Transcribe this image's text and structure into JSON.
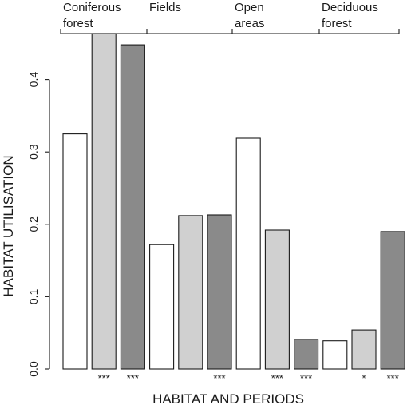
{
  "chart_data": {
    "type": "bar",
    "title": "",
    "xlabel": "HABITAT AND PERIODS",
    "ylabel": "HABITAT UTILISATION",
    "ylim": [
      0,
      0.47
    ],
    "yticks": [
      "0.0",
      "0.1",
      "0.2",
      "0.3",
      "0.4"
    ],
    "ytick_values": [
      0.0,
      0.1,
      0.2,
      0.3,
      0.4
    ],
    "grid": false,
    "groups": [
      {
        "label_lines": [
          "Coniferous",
          "forest"
        ],
        "values": [
          0.325,
          0.49,
          0.448
        ],
        "stars": [
          "",
          "***",
          "***"
        ]
      },
      {
        "label_lines": [
          "Fields"
        ],
        "values": [
          0.172,
          0.212,
          0.213
        ],
        "stars": [
          "",
          "",
          "***"
        ]
      },
      {
        "label_lines": [
          "Open",
          "areas"
        ],
        "values": [
          0.319,
          0.192,
          0.041
        ],
        "stars": [
          "",
          "***",
          "***"
        ]
      },
      {
        "label_lines": [
          "Deciduous",
          "forest"
        ],
        "values": [
          0.039,
          0.054,
          0.19
        ],
        "stars": [
          "",
          "*",
          "***"
        ]
      }
    ],
    "period_colors": [
      "#ffffff",
      "#d0d0d0",
      "#8a8a8a"
    ]
  }
}
